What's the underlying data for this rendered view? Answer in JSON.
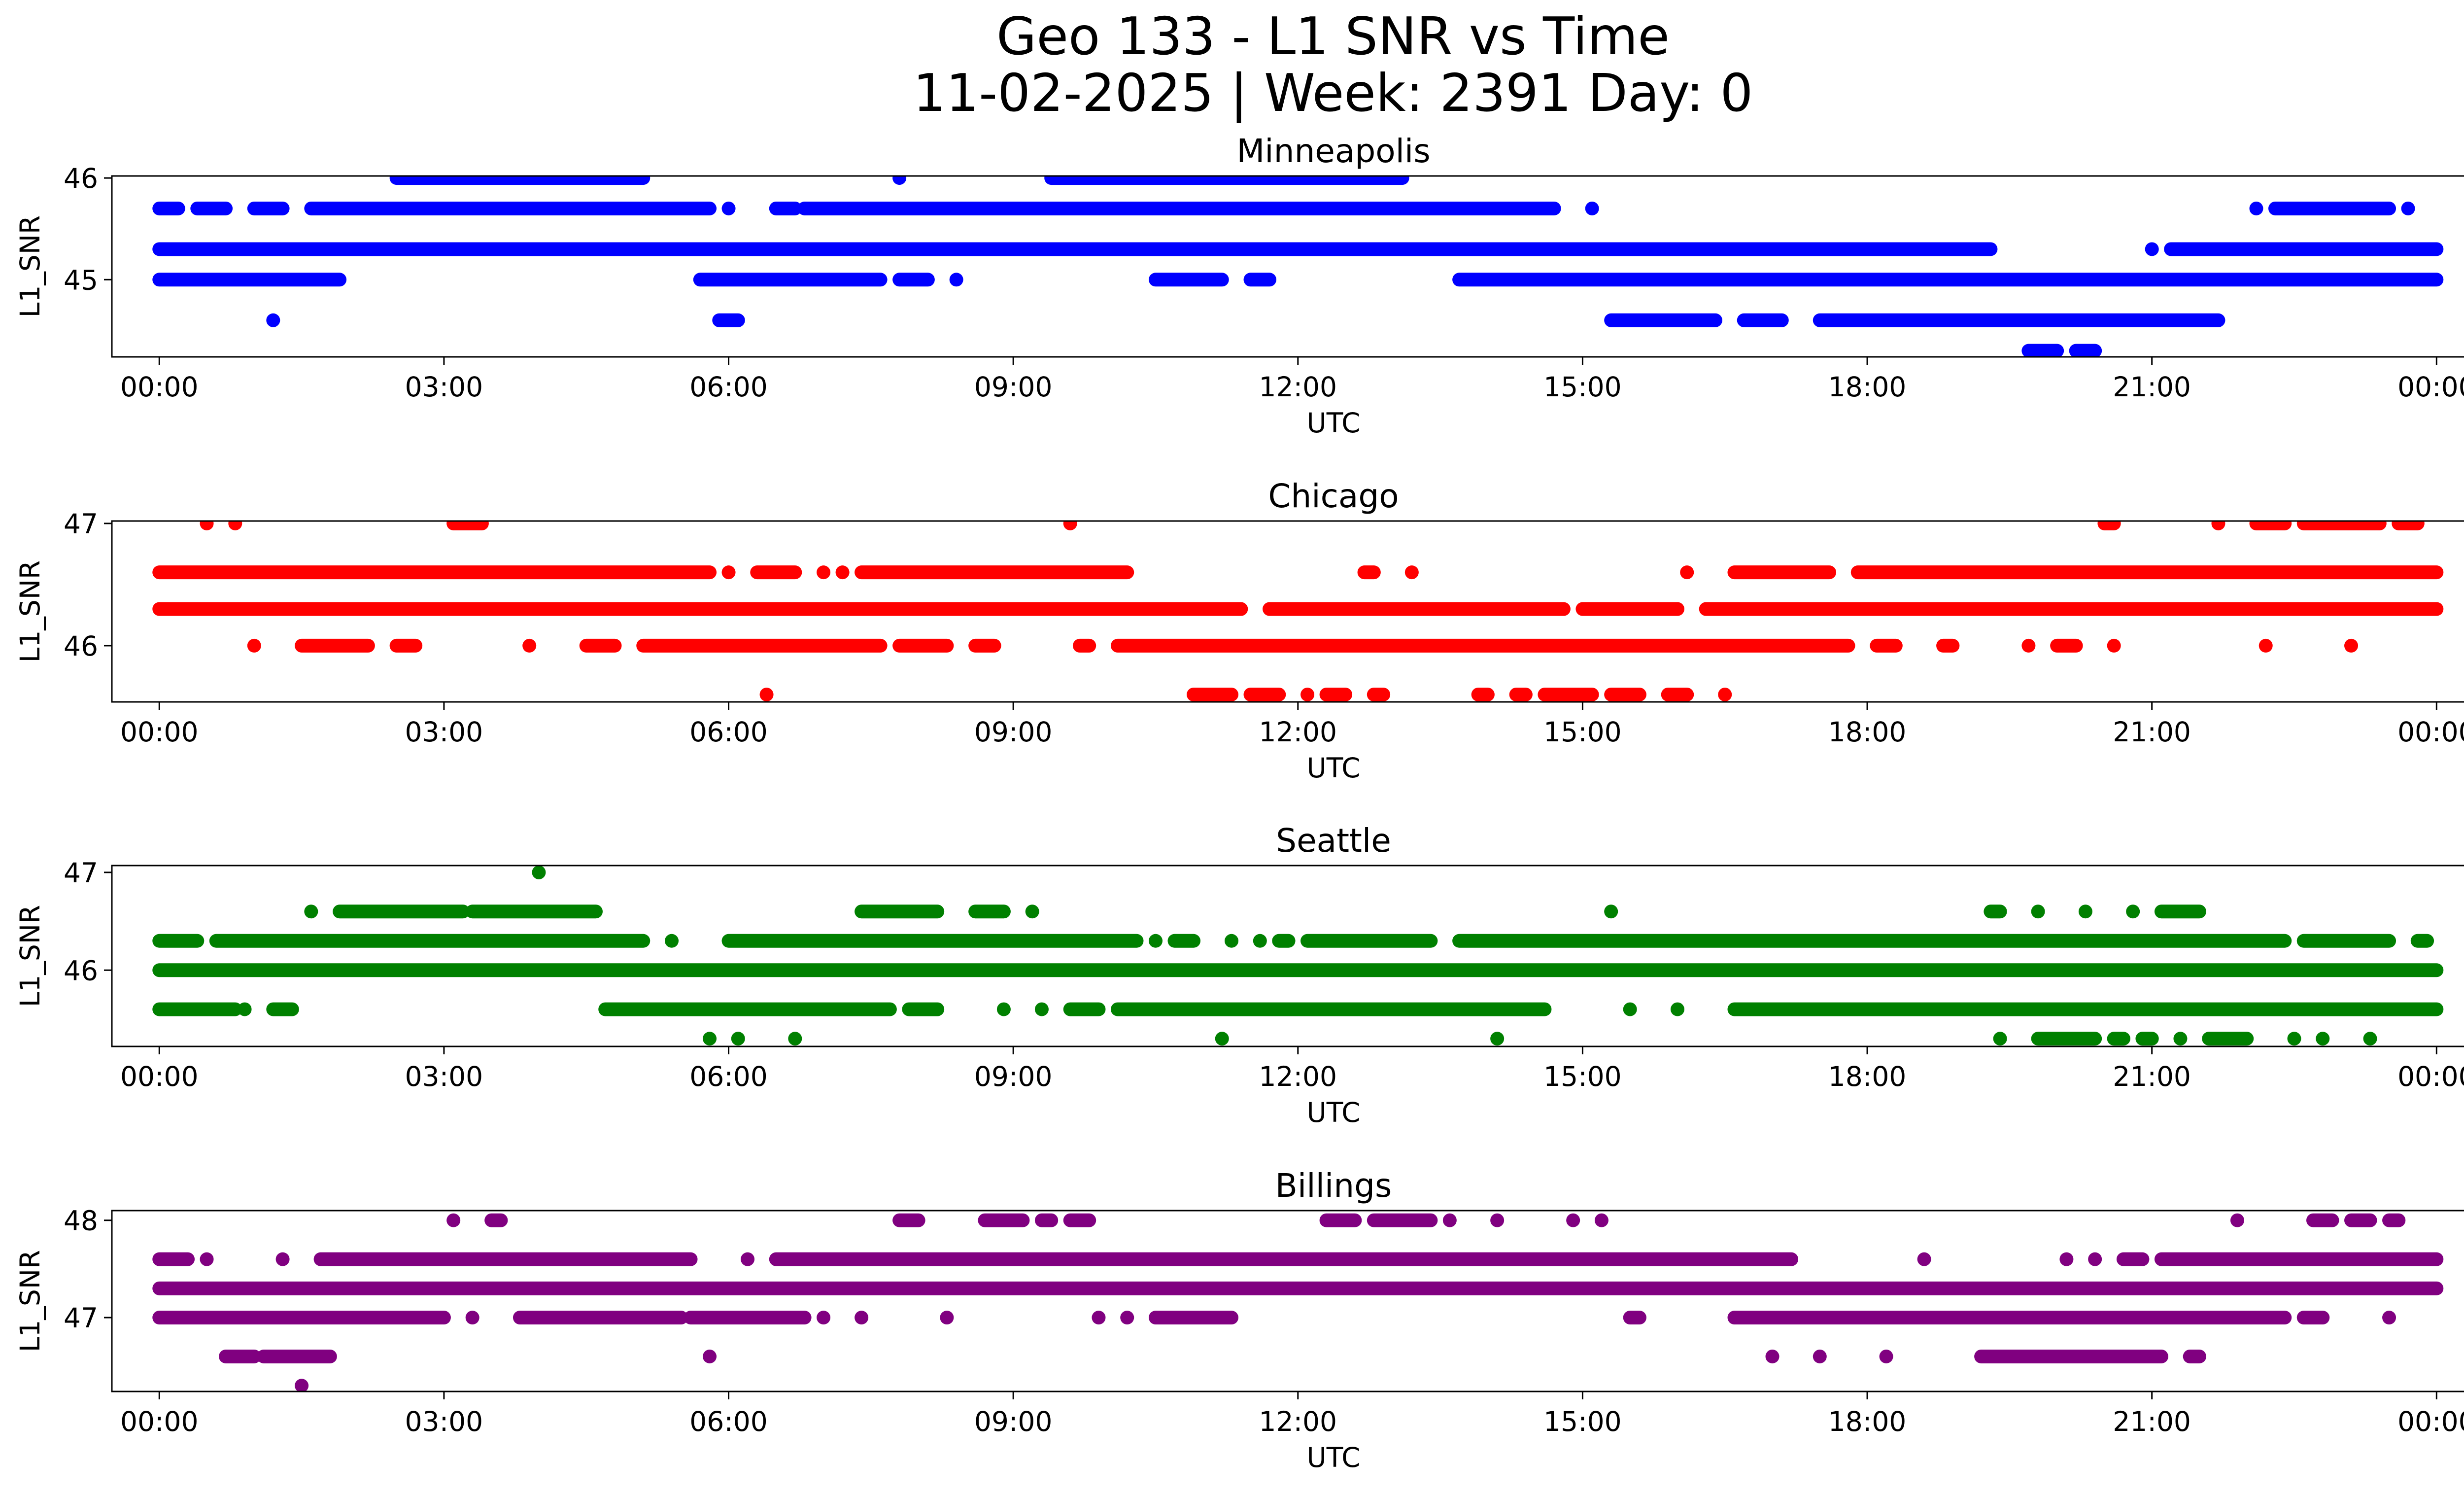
{
  "figure": {
    "title_line1": "Geo 133 - L1 SNR vs Time",
    "title_line2": "11-02-2025 | Week: 2391 Day: 0"
  },
  "chart_data": [
    {
      "type": "scatter",
      "title": "Minneapolis",
      "xlabel": "UTC",
      "ylabel": "L1_SNR",
      "color": "#0000ff",
      "xlim": [
        -0.5,
        25.25
      ],
      "ylim": [
        44.24,
        46.02
      ],
      "xticks": [
        "00:00",
        "03:00",
        "06:00",
        "09:00",
        "12:00",
        "15:00",
        "18:00",
        "21:00",
        "00:00"
      ],
      "yticks": [
        45,
        46
      ],
      "levels": [
        {
          "snr": 46.0,
          "runs": [
            [
              2.5,
              5.1
            ],
            [
              7.8,
              7.8
            ],
            [
              9.4,
              13.1
            ]
          ]
        },
        {
          "snr": 45.7,
          "runs": [
            [
              0.0,
              0.2
            ],
            [
              0.4,
              0.7
            ],
            [
              1.0,
              1.3
            ],
            [
              1.6,
              5.8
            ],
            [
              6.0,
              6.0
            ],
            [
              6.5,
              6.7
            ],
            [
              6.8,
              14.7
            ],
            [
              15.1,
              15.1
            ],
            [
              22.1,
              22.1
            ],
            [
              22.3,
              23.5
            ],
            [
              23.7,
              23.7
            ]
          ]
        },
        {
          "snr": 45.3,
          "runs": [
            [
              0.0,
              19.3
            ],
            [
              21.0,
              21.0
            ],
            [
              21.2,
              24.0
            ]
          ]
        },
        {
          "snr": 45.0,
          "runs": [
            [
              0.0,
              1.9
            ],
            [
              5.7,
              7.6
            ],
            [
              7.8,
              8.1
            ],
            [
              8.4,
              8.4
            ],
            [
              10.5,
              11.2
            ],
            [
              11.5,
              11.7
            ],
            [
              13.7,
              24.0
            ]
          ]
        },
        {
          "snr": 44.6,
          "runs": [
            [
              1.2,
              1.2
            ],
            [
              5.9,
              6.1
            ],
            [
              15.3,
              16.4
            ],
            [
              16.7,
              17.1
            ],
            [
              17.5,
              21.7
            ]
          ]
        },
        {
          "snr": 44.3,
          "runs": [
            [
              19.7,
              20.0
            ],
            [
              20.2,
              20.4
            ]
          ]
        }
      ]
    },
    {
      "type": "scatter",
      "title": "Chicago",
      "xlabel": "UTC",
      "ylabel": "L1_SNR",
      "color": "#ff0000",
      "xlim": [
        -0.5,
        25.25
      ],
      "ylim": [
        45.54,
        47.02
      ],
      "xticks": [
        "00:00",
        "03:00",
        "06:00",
        "09:00",
        "12:00",
        "15:00",
        "18:00",
        "21:00",
        "00:00"
      ],
      "yticks": [
        46,
        47
      ],
      "levels": [
        {
          "snr": 47.0,
          "runs": [
            [
              0.5,
              0.5
            ],
            [
              0.8,
              0.8
            ],
            [
              3.1,
              3.4
            ],
            [
              9.6,
              9.6
            ],
            [
              20.5,
              20.6
            ],
            [
              21.7,
              21.7
            ],
            [
              22.1,
              22.4
            ],
            [
              22.6,
              23.4
            ],
            [
              23.6,
              23.8
            ]
          ]
        },
        {
          "snr": 46.6,
          "runs": [
            [
              0.0,
              5.8
            ],
            [
              6.0,
              6.0
            ],
            [
              6.3,
              6.7
            ],
            [
              7.0,
              7.0
            ],
            [
              7.2,
              7.2
            ],
            [
              7.4,
              10.2
            ],
            [
              12.7,
              12.8
            ],
            [
              13.2,
              13.2
            ],
            [
              16.1,
              16.1
            ],
            [
              16.6,
              17.6
            ],
            [
              17.9,
              24.0
            ]
          ]
        },
        {
          "snr": 46.3,
          "runs": [
            [
              0.0,
              11.4
            ],
            [
              11.7,
              14.8
            ],
            [
              15.0,
              16.0
            ],
            [
              16.3,
              24.0
            ]
          ]
        },
        {
          "snr": 46.0,
          "runs": [
            [
              1.0,
              1.0
            ],
            [
              1.5,
              2.2
            ],
            [
              2.5,
              2.7
            ],
            [
              3.9,
              3.9
            ],
            [
              4.5,
              4.8
            ],
            [
              5.1,
              7.6
            ],
            [
              7.8,
              8.3
            ],
            [
              8.6,
              8.8
            ],
            [
              9.7,
              9.8
            ],
            [
              10.1,
              17.8
            ],
            [
              18.1,
              18.3
            ],
            [
              18.8,
              18.9
            ],
            [
              19.7,
              19.7
            ],
            [
              20.0,
              20.2
            ],
            [
              20.6,
              20.6
            ],
            [
              22.2,
              22.2
            ],
            [
              23.1,
              23.1
            ]
          ]
        },
        {
          "snr": 45.6,
          "runs": [
            [
              6.4,
              6.4
            ],
            [
              10.9,
              11.3
            ],
            [
              11.5,
              11.8
            ],
            [
              12.1,
              12.1
            ],
            [
              12.3,
              12.5
            ],
            [
              12.8,
              12.9
            ],
            [
              13.9,
              14.0
            ],
            [
              14.3,
              14.4
            ],
            [
              14.6,
              15.1
            ],
            [
              15.3,
              15.6
            ],
            [
              15.9,
              16.1
            ],
            [
              16.5,
              16.5
            ]
          ]
        }
      ]
    },
    {
      "type": "scatter",
      "title": "Seattle",
      "xlabel": "UTC",
      "ylabel": "L1_SNR",
      "color": "#008000",
      "xlim": [
        -0.5,
        25.25
      ],
      "ylim": [
        45.22,
        47.07
      ],
      "xticks": [
        "00:00",
        "03:00",
        "06:00",
        "09:00",
        "12:00",
        "15:00",
        "18:00",
        "21:00",
        "00:00"
      ],
      "yticks": [
        46,
        47
      ],
      "levels": [
        {
          "snr": 47.0,
          "runs": [
            [
              4.0,
              4.0
            ]
          ]
        },
        {
          "snr": 46.6,
          "runs": [
            [
              1.6,
              1.6
            ],
            [
              1.9,
              3.2
            ],
            [
              3.3,
              4.6
            ],
            [
              7.4,
              8.2
            ],
            [
              8.6,
              8.9
            ],
            [
              9.2,
              9.2
            ],
            [
              15.3,
              15.3
            ],
            [
              19.3,
              19.4
            ],
            [
              19.8,
              19.8
            ],
            [
              20.3,
              20.3
            ],
            [
              20.8,
              20.8
            ],
            [
              21.1,
              21.5
            ]
          ]
        },
        {
          "snr": 46.3,
          "runs": [
            [
              0.0,
              0.4
            ],
            [
              0.6,
              5.1
            ],
            [
              5.4,
              5.4
            ],
            [
              6.0,
              10.3
            ],
            [
              10.5,
              10.5
            ],
            [
              10.7,
              10.9
            ],
            [
              11.3,
              11.3
            ],
            [
              11.6,
              11.6
            ],
            [
              11.8,
              11.9
            ],
            [
              12.1,
              13.4
            ],
            [
              13.7,
              22.4
            ],
            [
              22.6,
              23.5
            ],
            [
              23.8,
              23.9
            ]
          ]
        },
        {
          "snr": 46.0,
          "runs": [
            [
              0.0,
              24.0
            ]
          ]
        },
        {
          "snr": 45.6,
          "runs": [
            [
              0.0,
              0.8
            ],
            [
              0.9,
              0.9
            ],
            [
              1.2,
              1.4
            ],
            [
              4.7,
              7.7
            ],
            [
              7.9,
              8.2
            ],
            [
              8.9,
              8.9
            ],
            [
              9.3,
              9.3
            ],
            [
              9.6,
              9.9
            ],
            [
              10.1,
              14.6
            ],
            [
              15.5,
              15.5
            ],
            [
              16.0,
              16.0
            ],
            [
              16.6,
              24.0
            ]
          ]
        },
        {
          "snr": 45.3,
          "runs": [
            [
              5.8,
              5.8
            ],
            [
              6.1,
              6.1
            ],
            [
              6.7,
              6.7
            ],
            [
              11.2,
              11.2
            ],
            [
              14.1,
              14.1
            ],
            [
              19.4,
              19.4
            ],
            [
              19.8,
              20.4
            ],
            [
              20.6,
              20.7
            ],
            [
              20.9,
              21.0
            ],
            [
              21.3,
              21.3
            ],
            [
              21.6,
              22.0
            ],
            [
              22.5,
              22.5
            ],
            [
              22.8,
              22.8
            ],
            [
              23.3,
              23.3
            ]
          ]
        }
      ]
    },
    {
      "type": "scatter",
      "title": "Billings",
      "xlabel": "UTC",
      "ylabel": "L1_SNR",
      "color": "#800080",
      "xlim": [
        -0.5,
        25.25
      ],
      "ylim": [
        46.24,
        48.1
      ],
      "xticks": [
        "00:00",
        "03:00",
        "06:00",
        "09:00",
        "12:00",
        "15:00",
        "18:00",
        "21:00",
        "00:00"
      ],
      "yticks": [
        47,
        48
      ],
      "levels": [
        {
          "snr": 48.0,
          "runs": [
            [
              3.1,
              3.1
            ],
            [
              3.5,
              3.6
            ],
            [
              7.8,
              8.0
            ],
            [
              8.7,
              9.1
            ],
            [
              9.3,
              9.4
            ],
            [
              9.6,
              9.8
            ],
            [
              12.3,
              12.6
            ],
            [
              12.8,
              13.4
            ],
            [
              13.6,
              13.6
            ],
            [
              14.1,
              14.1
            ],
            [
              14.9,
              14.9
            ],
            [
              15.2,
              15.2
            ],
            [
              21.9,
              21.9
            ],
            [
              22.7,
              22.9
            ],
            [
              23.1,
              23.3
            ],
            [
              23.5,
              23.6
            ]
          ]
        },
        {
          "snr": 47.6,
          "runs": [
            [
              0.0,
              0.3
            ],
            [
              0.5,
              0.5
            ],
            [
              1.3,
              1.3
            ],
            [
              1.7,
              5.6
            ],
            [
              6.2,
              6.2
            ],
            [
              6.5,
              17.2
            ],
            [
              18.6,
              18.6
            ],
            [
              20.1,
              20.1
            ],
            [
              20.4,
              20.4
            ],
            [
              20.7,
              20.9
            ],
            [
              21.1,
              24.0
            ]
          ]
        },
        {
          "snr": 47.3,
          "runs": [
            [
              0.0,
              24.0
            ]
          ]
        },
        {
          "snr": 47.0,
          "runs": [
            [
              0.0,
              3.0
            ],
            [
              3.3,
              3.3
            ],
            [
              3.8,
              5.5
            ],
            [
              5.6,
              6.8
            ],
            [
              7.0,
              7.0
            ],
            [
              7.4,
              7.4
            ],
            [
              8.3,
              8.3
            ],
            [
              9.9,
              9.9
            ],
            [
              10.2,
              10.2
            ],
            [
              10.5,
              11.3
            ],
            [
              15.5,
              15.6
            ],
            [
              16.6,
              22.4
            ],
            [
              22.6,
              22.8
            ],
            [
              23.5,
              23.5
            ]
          ]
        },
        {
          "snr": 46.6,
          "runs": [
            [
              0.7,
              1.0
            ],
            [
              1.1,
              1.8
            ],
            [
              5.8,
              5.8
            ],
            [
              17.0,
              17.0
            ],
            [
              17.5,
              17.5
            ],
            [
              18.2,
              18.2
            ],
            [
              19.2,
              21.1
            ],
            [
              21.4,
              21.5
            ]
          ]
        },
        {
          "snr": 46.3,
          "runs": [
            [
              1.5,
              1.5
            ]
          ]
        }
      ]
    }
  ]
}
